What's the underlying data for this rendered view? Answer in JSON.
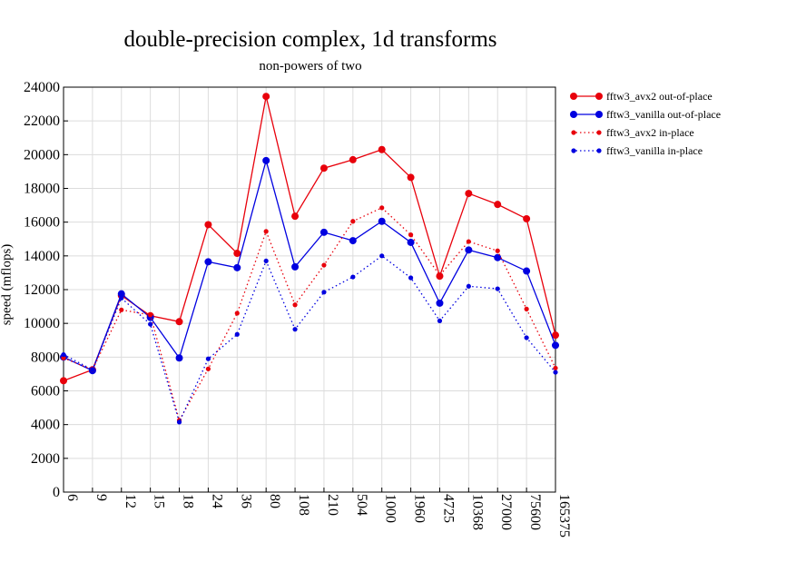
{
  "chart_data": {
    "type": "line",
    "title": "double-precision complex, 1d transforms",
    "subtitle": "non-powers of two",
    "ylabel": "speed (mflops)",
    "xlabel": "",
    "ylim": [
      0,
      24000
    ],
    "yticks": [
      0,
      2000,
      4000,
      6000,
      8000,
      10000,
      12000,
      14000,
      16000,
      18000,
      20000,
      22000,
      24000
    ],
    "grid": true,
    "legend_position": "right",
    "categories": [
      "6",
      "9",
      "12",
      "15",
      "18",
      "24",
      "36",
      "80",
      "108",
      "210",
      "504",
      "1000",
      "1960",
      "4725",
      "10368",
      "27000",
      "75600",
      "165375"
    ],
    "series": [
      {
        "name": "fftw3_avx2 out-of-place",
        "color": "#e8000b",
        "style": "solid",
        "marker": "large",
        "values": [
          6600,
          7250,
          11650,
          10450,
          10100,
          15850,
          14150,
          23450,
          16350,
          19200,
          19700,
          20300,
          18650,
          12800,
          17700,
          17050,
          16200,
          9300
        ]
      },
      {
        "name": "fftw3_vanilla out-of-place",
        "color": "#0000e0",
        "style": "solid",
        "marker": "large",
        "values": [
          8000,
          7200,
          11750,
          10350,
          7950,
          13650,
          13300,
          19650,
          13350,
          15400,
          14900,
          16050,
          14800,
          11200,
          14350,
          13900,
          13100,
          8700
        ]
      },
      {
        "name": "fftw3_avx2 in-place",
        "color": "#e8000b",
        "style": "dotted",
        "marker": "small",
        "values": [
          7950,
          7250,
          10800,
          10500,
          4250,
          7300,
          10600,
          15450,
          11100,
          13450,
          16050,
          16850,
          15250,
          12850,
          14850,
          14300,
          10850,
          7350
        ]
      },
      {
        "name": "fftw3_vanilla in-place",
        "color": "#0000e0",
        "style": "dotted",
        "marker": "small",
        "values": [
          8150,
          7250,
          11500,
          9950,
          4150,
          7900,
          9350,
          13700,
          9650,
          11850,
          12750,
          14000,
          12700,
          10150,
          12200,
          12050,
          9150,
          7100
        ]
      }
    ]
  }
}
